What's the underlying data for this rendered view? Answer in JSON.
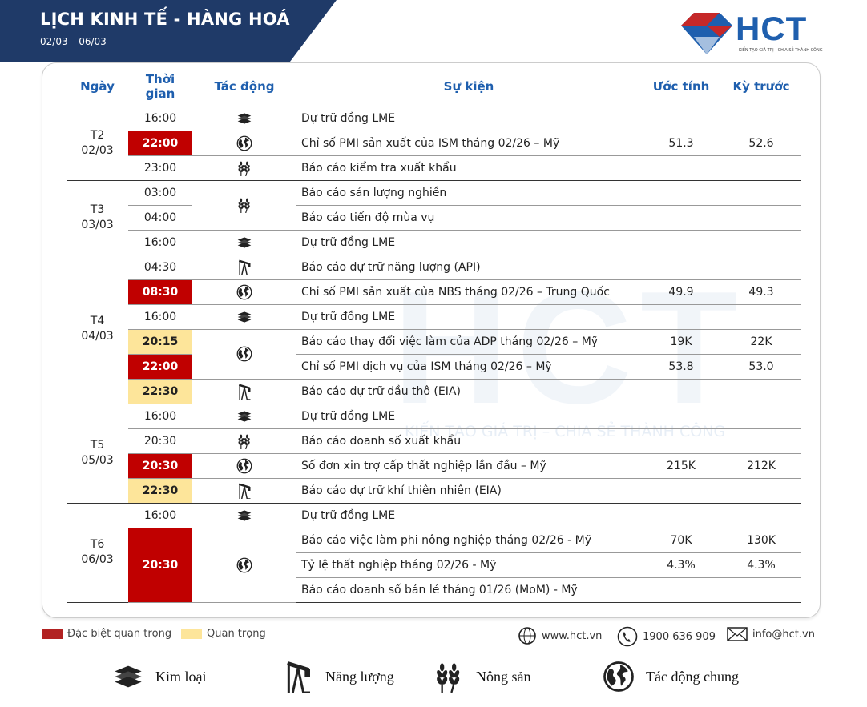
{
  "header": {
    "title": "LỊCH KINH TẾ - HÀNG HOÁ",
    "date_range": "02/03 – 06/03"
  },
  "logo": {
    "text": "HCT",
    "tagline": "KIẾN TẠO GIÁ TRỊ - CHIA SẺ THÀNH CÔNG"
  },
  "watermark": {
    "text": "HCT",
    "tagline": "KIẾN TẠO GIÁ TRỊ – CHIA SẺ THÀNH CÔNG"
  },
  "colors": {
    "very_important": "#c00000",
    "important": "#fde59a",
    "brand": "#1f5fae",
    "banner": "#1f3a68"
  },
  "columns": {
    "day": "Ngày",
    "time": "Thời gian",
    "impact": "Tác động",
    "event": "Sự kiện",
    "forecast": "Ước tính",
    "previous": "Kỳ trước"
  },
  "days": [
    {
      "day": "T2",
      "date": "02/03",
      "rows": [
        {
          "time": "16:00",
          "level": "",
          "impact": "metal-icon",
          "event": "Dự trữ đồng LME",
          "forecast": "",
          "previous": ""
        },
        {
          "time": "22:00",
          "level": "very_important",
          "impact": "globe-icon",
          "event": "Chỉ số PMI sản xuất của ISM tháng 02/26 – Mỹ",
          "forecast": "51.3",
          "previous": "52.6"
        },
        {
          "time": "23:00",
          "level": "",
          "impact": "wheat-icon",
          "event": "Báo cáo kiểm tra xuất khẩu",
          "forecast": "",
          "previous": ""
        }
      ]
    },
    {
      "day": "T3",
      "date": "03/03",
      "rows": [
        {
          "time": "03:00",
          "level": "",
          "impact": "wheat-icon",
          "event": "Báo cáo sản lượng nghiền",
          "forecast": "",
          "previous": ""
        },
        {
          "time": "04:00",
          "level": "",
          "impact": "wheat-icon",
          "event": "Báo cáo tiến độ mùa vụ",
          "forecast": "",
          "previous": ""
        },
        {
          "time": "16:00",
          "level": "",
          "impact": "metal-icon",
          "event": "Dự trữ đồng LME",
          "forecast": "",
          "previous": ""
        }
      ]
    },
    {
      "day": "T4",
      "date": "04/03",
      "rows": [
        {
          "time": "04:30",
          "level": "",
          "impact": "oil-pump-icon",
          "event": "Báo cáo dự trữ năng lượng (API)",
          "forecast": "",
          "previous": ""
        },
        {
          "time": "08:30",
          "level": "very_important",
          "impact": "globe-icon",
          "event": "Chỉ số PMI sản xuất của NBS tháng 02/26 – Trung Quốc",
          "forecast": "49.9",
          "previous": "49.3"
        },
        {
          "time": "16:00",
          "level": "",
          "impact": "metal-icon",
          "event": "Dự trữ đồng LME",
          "forecast": "",
          "previous": ""
        },
        {
          "time": "20:15",
          "level": "important",
          "impact": "globe-icon",
          "event": "Báo cáo thay đổi việc làm của ADP tháng 02/26 – Mỹ",
          "forecast": "19K",
          "previous": "22K"
        },
        {
          "time": "22:00",
          "level": "very_important",
          "impact": "globe-icon",
          "event": "Chỉ số PMI dịch vụ của ISM tháng 02/26 – Mỹ",
          "forecast": "53.8",
          "previous": "53.0"
        },
        {
          "time": "22:30",
          "level": "important",
          "impact": "oil-pump-icon",
          "event": "Báo cáo dự trữ dầu thô (EIA)",
          "forecast": "",
          "previous": ""
        }
      ]
    },
    {
      "day": "T5",
      "date": "05/03",
      "rows": [
        {
          "time": "16:00",
          "level": "",
          "impact": "metal-icon",
          "event": "Dự trữ đồng LME",
          "forecast": "",
          "previous": ""
        },
        {
          "time": "20:30",
          "level": "",
          "impact": "wheat-icon",
          "event": "Báo cáo doanh số xuất khẩu",
          "forecast": "",
          "previous": ""
        },
        {
          "time": "20:30",
          "level": "very_important",
          "impact": "globe-icon",
          "event": " Số đơn xin trợ cấp thất nghiệp lần đầu – Mỹ",
          "forecast": "215K",
          "previous": "212K"
        },
        {
          "time": "22:30",
          "level": "important",
          "impact": "oil-pump-icon",
          "event": "Báo cáo dự trữ khí thiên nhiên (EIA)",
          "forecast": "",
          "previous": ""
        }
      ]
    },
    {
      "day": "T6",
      "date": "06/03",
      "rows": [
        {
          "time": "16:00",
          "level": "",
          "impact": "metal-icon",
          "event": "Dự trữ đồng LME",
          "forecast": "",
          "previous": ""
        },
        {
          "time": "20:30",
          "level": "very_important",
          "impact": "globe-icon",
          "event": "Báo cáo việc làm phi nông nghiệp tháng 02/26 - Mỹ",
          "forecast": "70K",
          "previous": "130K"
        },
        {
          "time": "20:30",
          "level": "very_important",
          "impact": "globe-icon",
          "event": "Tỷ lệ thất nghiệp tháng 02/26 - Mỹ",
          "forecast": "4.3%",
          "previous": "4.3%"
        },
        {
          "time": "20:30",
          "level": "very_important",
          "impact": "globe-icon",
          "event": "Báo cáo doanh số bán lẻ tháng 01/26 (MoM) - Mỹ",
          "forecast": "",
          "previous": ""
        }
      ]
    }
  ],
  "legend": {
    "very_important": "Đặc biệt quan trọng",
    "important": "Quan trọng"
  },
  "contact": {
    "website": "www.hct.vn",
    "phone": "1900 636 909",
    "email": "info@hct.vn"
  },
  "categories": [
    {
      "icon": "metal-icon",
      "label": "Kim loại"
    },
    {
      "icon": "oil-pump-icon",
      "label": "Năng lượng"
    },
    {
      "icon": "wheat-icon",
      "label": "Nông sản"
    },
    {
      "icon": "globe-icon",
      "label": "Tác động chung"
    }
  ]
}
